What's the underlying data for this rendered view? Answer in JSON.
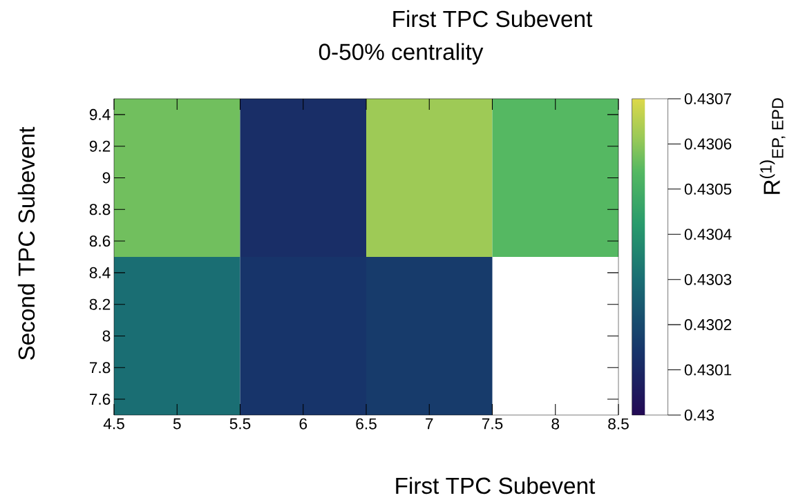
{
  "chart_data": {
    "type": "heatmap",
    "title": "First TPC Subevent",
    "subtitle": "0-50% centrality",
    "xlabel": "First TPC Subevent",
    "ylabel": "Second TPC Subevent",
    "clabel": "R$^{(1)}$$_{EP, EPD}$",
    "x": [
      5,
      6,
      7,
      8
    ],
    "y": [
      9,
      8
    ],
    "xlim": [
      4.5,
      8.5
    ],
    "xticks": [
      4.5,
      5,
      5.5,
      6,
      6.5,
      7,
      7.5,
      8,
      8.5
    ],
    "ylim": [
      7.5,
      9.5
    ],
    "yticks": [
      7.6,
      7.8,
      8,
      8.2,
      8.4,
      8.6,
      8.8,
      9,
      9.2,
      9.4
    ],
    "cells": [
      [
        0.43057,
        0.43012,
        0.43062,
        0.43054
      ],
      [
        0.4303,
        0.43014,
        0.43016,
        null
      ]
    ],
    "clim": [
      0.43,
      0.4307
    ],
    "cticks": [
      0.43,
      0.4301,
      0.4302,
      0.4303,
      0.4304,
      0.4305,
      0.4306,
      0.4307
    ]
  }
}
